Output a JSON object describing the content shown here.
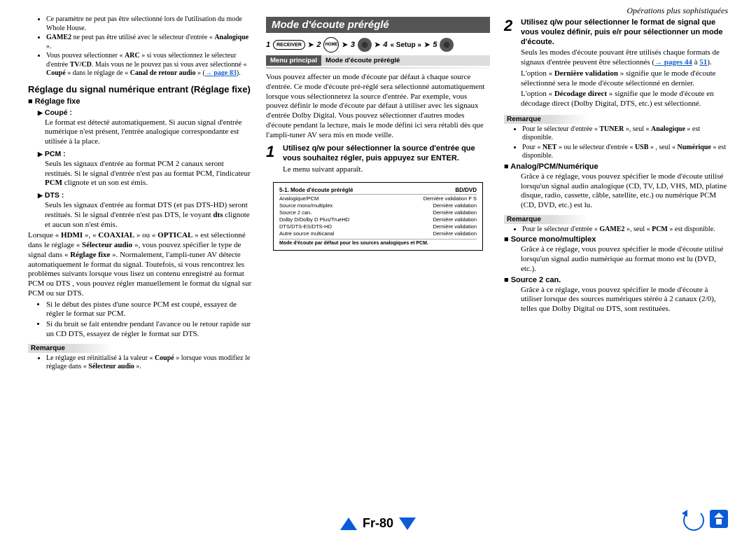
{
  "page_header_right": "Opérations plus sophistiquées",
  "page_number": "Fr-80",
  "col1": {
    "bullets_top": [
      "Ce paramètre ne peut pas être sélectionné lors de l'utilisation du mode Whole House.",
      "GAME2 ne peut pas être utilisé avec le sélecteur d'entrée « Analogique ».",
      "Vous pouvez sélectionner « ARC » si vous sélectionnez le sélecteur d'entrée TV/CD. Mais vous ne le pouvez pas si vous avez sélectionné « Coupé » dans le réglage de « Canal de retour audio » (→ page 83)."
    ],
    "section_title": "Réglage du signal numérique entrant (Réglage fixe)",
    "subtitle": "Réglage fixe",
    "options": [
      {
        "name": "Coupé :",
        "desc": "Le format est détecté automatiquement. Si aucun signal d'entrée numérique n'est présent, l'entrée analogique correspondante est utilisée à la place."
      },
      {
        "name": "PCM :",
        "desc": "Seuls les signaux d'entrée au format PCM 2 canaux seront restitués. Si le signal d'entrée n'est pas au format PCM, l'indicateur PCM clignote et un son est émis."
      },
      {
        "name": "DTS :",
        "desc": "Seuls les signaux d'entrée au format DTS (et pas DTS-HD) seront restitués. Si le signal d'entrée n'est pas DTS, le voyant dts clignote et aucun son n'est émis."
      }
    ],
    "para1": "Lorsque « HDMI », « COAXIAL » ou « OPTICAL » est sélectionné dans le réglage « Sélecteur audio », vous pouvez spécifier le type de signal dans « Réglage fixe ». Normalement, l'ampli-tuner AV détecte automatiquement le format du signal. Toutefois, si vous rencontrez les problèmes suivants lorsque vous lisez un contenu enregistré au format PCM ou DTS , vous pouvez régler manuellement le format du signal sur PCM ou sur DTS.",
    "bullets2": [
      "Si le début des pistes d'une source PCM est coupé, essayez de régler le format sur PCM.",
      "Si du bruit se fait entendre pendant l'avance ou le retour rapide sur un CD DTS, essayez de régler le format sur DTS."
    ],
    "remarque_label": "Remarque",
    "remarque_items": [
      "Le réglage est réinitialisé à la valeur « Coupé » lorsque vous modifiez le réglage dans « Sélecteur audio »."
    ]
  },
  "col2": {
    "title_bar": "Mode d'écoute préréglé",
    "nav_setup_label": "« Setup »",
    "menu_tab_left": "Menu principal",
    "menu_tab_right": "Mode d'écoute préréglé",
    "intro": "Vous pouvez affecter un mode d'écoute par défaut à chaque source d'entrée. Ce mode d'écoute pré-réglé sera sélectionné automatiquement lorsque vous sélectionnerez la source d'entrée. Par exemple, vous pouvez définir le mode d'écoute par défaut à utiliser avec les signaux d'entrée Dolby Digital. Vous pouvez sélectionner d'autres modes d'écoute pendant la lecture, mais le mode défini ici sera rétabli dès que l'ampli-tuner AV sera mis en mode veille.",
    "step1": {
      "num": "1",
      "text": "Utilisez q/w pour sélectionner la source d'entrée que vous souhaitez régler, puis appuyez sur ENTER.",
      "after": "Le menu suivant apparaît."
    },
    "display": {
      "title_left": "5-1. Mode d'écoute préréglé",
      "title_right": "BD/DVD",
      "rows": [
        [
          "Analogique/PCM",
          "Dernière validation  F S"
        ],
        [
          "Source mono/multiplex",
          "Dernière validation"
        ],
        [
          "Source 2 can.",
          "Dernière validation"
        ],
        [
          "Dolby D/Dolby D Plus/TrueHD",
          "Dernière validation"
        ],
        [
          "DTS/DTS-ES/DTS-HD",
          "Dernière validation"
        ],
        [
          "Autre source multicanal",
          "Dernière validation"
        ]
      ],
      "footer": "Mode d'écoute par défaut pour les sources analogiques et PCM."
    }
  },
  "col3": {
    "step2": {
      "num": "2",
      "text": "Utilisez q/w pour sélectionner le format de signal que vous voulez définir, puis e/r pour sélectionner un mode d'écoute.",
      "after": "Seuls les modes d'écoute pouvant être utilisés chaque formats de signaux d'entrée peuvent être sélectionnés (→ pages 44 à 51).",
      "p2": "L'option « Dernière validation » signifie que le mode d'écoute sélectionné sera le mode d'écoute sélectionné en dernier.",
      "p3": "L'option « Décodage direct » signifie que le mode d'écoute en décodage direct (Dolby Digital, DTS, etc.) est sélectionné."
    },
    "remarque_label": "Remarque",
    "remarque_items1": [
      "Pour le sélecteur d'entrée « TUNER », seul « Analogique » est disponible.",
      "Pour « NET » ou le sélecteur d'entrée « USB » , seul « Numérique » est disponible."
    ],
    "sub_analog": "Analog/PCM/Numérique",
    "sub_analog_p": "Grâce à ce réglage, vous pouvez spécifier le mode d'écoute utilisé lorsqu'un signal audio analogique (CD, TV, LD, VHS, MD, platine disque, radio, cassette, câble, satellite, etc.) ou numérique PCM (CD, DVD, etc.) est lu.",
    "remarque_items2": [
      "Pour le sélecteur d'entrée « GAME2 », seul « PCM » est disponible."
    ],
    "sub_mono": "Source mono/multiplex",
    "sub_mono_p": "Grâce à ce réglage, vous pouvez spécifier le mode d'écoute utilisé lorsqu'un signal audio numérique au format mono est lu (DVD, etc.).",
    "sub_src2": "Source 2 can.",
    "sub_src2_p": "Grâce à ce réglage, vous pouvez spécifier le mode d'écoute à utiliser lorsque des sources numériques stéréo à 2 canaux (2/0), telles que Dolby Digital ou DTS, sont restituées."
  }
}
